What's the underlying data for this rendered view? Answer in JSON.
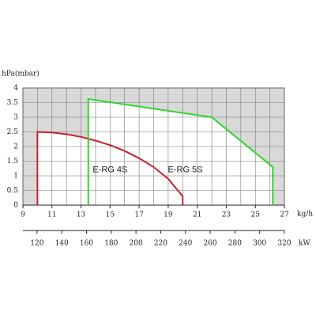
{
  "chart_data": {
    "type": "line",
    "y_label": "hPa(mbar)",
    "x_unit": "kg/h",
    "x2_unit": "kW",
    "xlim": [
      9,
      27
    ],
    "xticks": [
      9,
      11,
      13,
      15,
      17,
      19,
      21,
      23,
      25,
      27
    ],
    "x2lim": [
      108.6,
      320
    ],
    "x2ticks": [
      120,
      140,
      160,
      180,
      200,
      220,
      240,
      260,
      280,
      300,
      320
    ],
    "ylim": [
      0,
      4
    ],
    "yticks": [
      0,
      0.5,
      1,
      1.5,
      2,
      2.5,
      3,
      3.5,
      4
    ],
    "grid": true,
    "x_minor_grid": true,
    "series": [
      {
        "name": "E-RG 4S",
        "color": "#c8202c",
        "x": [
          10,
          10,
          11,
          12,
          13,
          14,
          15,
          16,
          17,
          18,
          19,
          20,
          20
        ],
        "values": [
          0,
          2.5,
          2.48,
          2.42,
          2.33,
          2.2,
          2.05,
          1.85,
          1.6,
          1.3,
          0.9,
          0.3,
          0
        ]
      },
      {
        "name": "E-RG 5S",
        "color": "#2fd52f",
        "x": [
          13.5,
          13.5,
          22,
          26.2,
          26.2
        ],
        "values": [
          0,
          3.62,
          3.0,
          1.3,
          0
        ]
      }
    ]
  }
}
